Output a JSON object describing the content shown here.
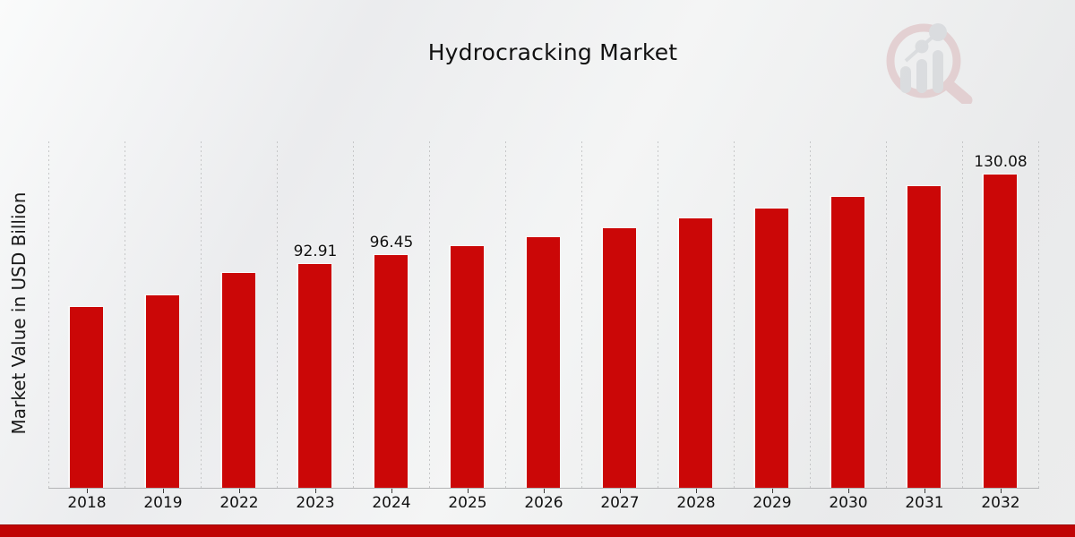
{
  "page": {
    "title": "Hydrocracking Market"
  },
  "chart_data": {
    "type": "bar",
    "title": "Hydrocracking Market",
    "xlabel": "",
    "ylabel": "Market Value in USD Billion",
    "categories": [
      "2018",
      "2019",
      "2022",
      "2023",
      "2024",
      "2025",
      "2026",
      "2027",
      "2028",
      "2029",
      "2030",
      "2031",
      "2032"
    ],
    "values": [
      74.9,
      79.9,
      89.3,
      92.91,
      96.45,
      100.3,
      104.0,
      107.9,
      111.9,
      115.9,
      120.8,
      125.3,
      130.08
    ],
    "bar_labels": [
      "",
      "",
      "",
      "92.91",
      "96.45",
      "",
      "",
      "",
      "",
      "",
      "",
      "",
      "130.08"
    ],
    "ylim": [
      0,
      143.8
    ],
    "grid": "vertical-dashed",
    "legend_position": "none",
    "bar_color": "#cb0707",
    "accent_band_color": "#c00404",
    "background_color": "#ededee"
  },
  "icons": {
    "logo": "bar-chart-magnifier-logo"
  }
}
